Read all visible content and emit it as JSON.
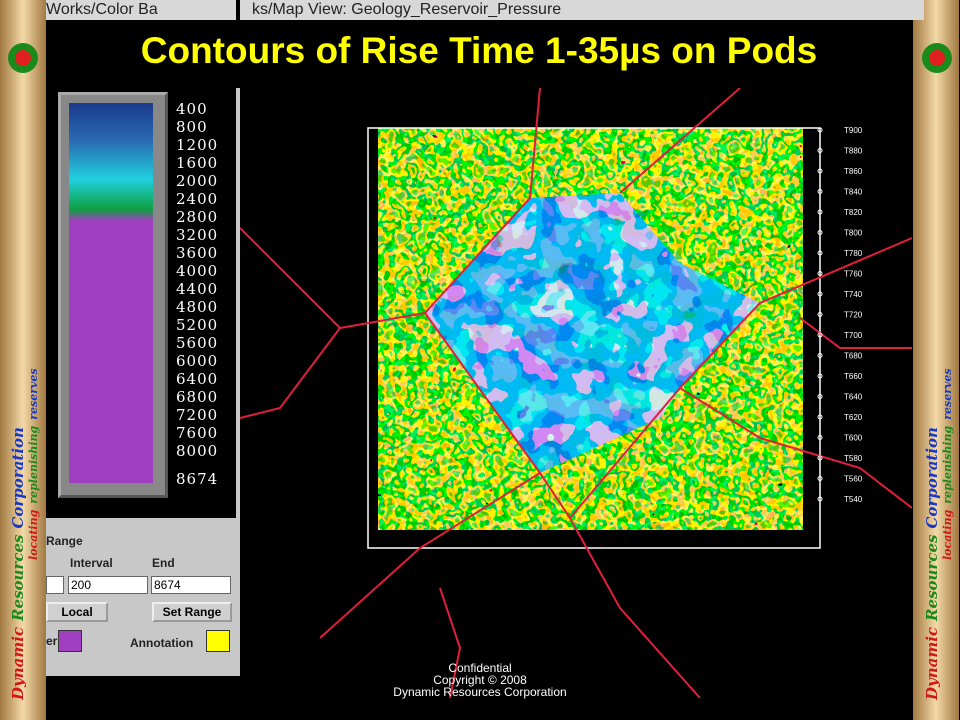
{
  "slide": {
    "title": "Contours of Rise Time 1-35µs on Pods",
    "banner_words": [
      "Dynamic",
      "Resources",
      "Corporation"
    ],
    "tagline_words": [
      "locating",
      "replenishing",
      "reserves"
    ],
    "footer": [
      "Confidential",
      "Copyright © 2008",
      "Dynamic Resources Corporation"
    ]
  },
  "color_window": {
    "title": "Works/Color Ba",
    "scale_labels": [
      400,
      800,
      1200,
      1600,
      2000,
      2400,
      2800,
      3200,
      3600,
      4000,
      4400,
      4800,
      5200,
      5600,
      6000,
      6400,
      6800,
      7200,
      7600,
      8000,
      8674
    ],
    "range_label": "Range",
    "interval_label": "Interval",
    "end_label": "End",
    "interval_value": "200",
    "end_value": "8674",
    "mode": "Local",
    "set_range": "Set Range",
    "color_label": "er",
    "annotation_label": "Annotation"
  },
  "map_window": {
    "title": "ks/Map View: Geology_Reservoir_Pressure",
    "right_labels": [
      "T900",
      "T880",
      "T860",
      "T840",
      "T820",
      "T800",
      "T780",
      "T760",
      "T740",
      "T720",
      "T700",
      "T680",
      "T660",
      "T640",
      "T620",
      "T600",
      "T580",
      "T560",
      "T540"
    ]
  }
}
